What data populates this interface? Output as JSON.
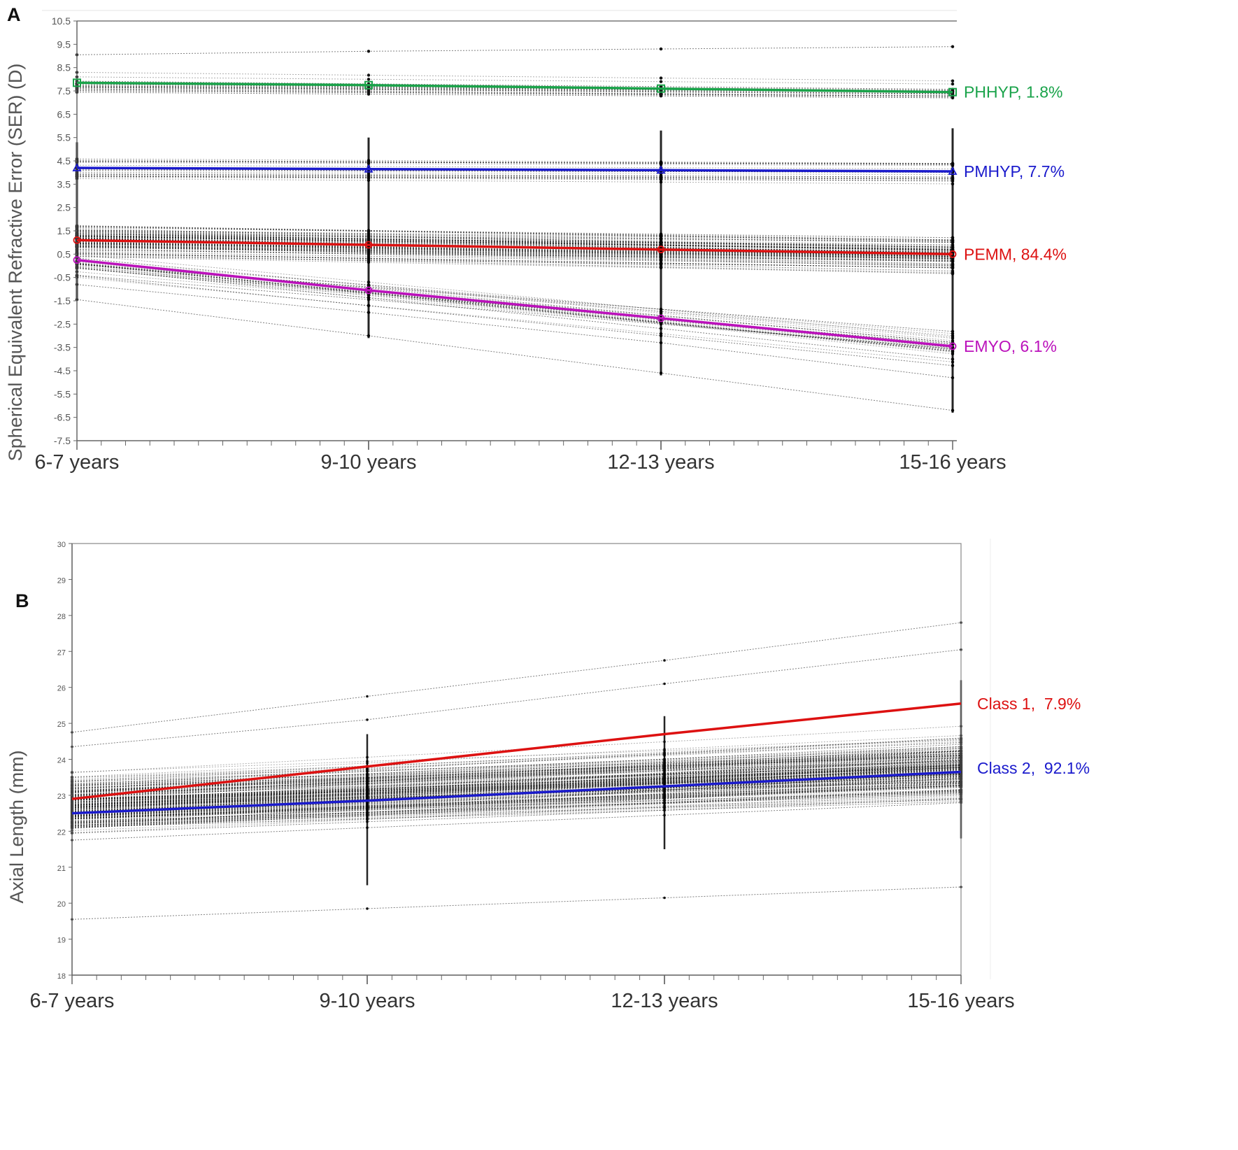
{
  "chart_data": [
    {
      "panel": "A",
      "type": "line",
      "ylabel": "Spherical Equivalent Refractive Error (SER) (D)",
      "xlabel": "",
      "categories": [
        "6-7 years",
        "9-10 years",
        "12-13 years",
        "15-16 years"
      ],
      "ylim": [
        -7.5,
        10.5
      ],
      "yticks": [
        "10.5",
        "9.5",
        "8.5",
        "7.5",
        "6.5",
        "5.5",
        "4.5",
        "3.5",
        "2.5",
        "1.5",
        "0.5",
        "-0.5",
        "-1.5",
        "-2.5",
        "-3.5",
        "-4.5",
        "-5.5",
        "-6.5",
        "-7.5"
      ],
      "series": [
        {
          "name": "PHHYP",
          "label": "PHHYP, 1.8%",
          "color": "#1aa34a",
          "marker": "square",
          "values": [
            7.85,
            7.75,
            7.6,
            7.45
          ]
        },
        {
          "name": "PMHYP",
          "label": "PMHYP, 7.7%",
          "color": "#1a1acc",
          "marker": "triangle",
          "values": [
            4.2,
            4.15,
            4.1,
            4.05
          ]
        },
        {
          "name": "PEMM",
          "label": "PEMM, 84.4%",
          "color": "#dd1111",
          "marker": "circle",
          "values": [
            1.1,
            0.9,
            0.7,
            0.5
          ]
        },
        {
          "name": "EMYO",
          "label": "EMYO, 6.1%",
          "color": "#bb11bb",
          "marker": "circle",
          "values": [
            0.25,
            -1.05,
            -2.25,
            -3.45
          ]
        }
      ]
    },
    {
      "panel": "B",
      "type": "line",
      "ylabel": "Axial Length (mm)",
      "xlabel": "",
      "categories": [
        "6-7 years",
        "9-10 years",
        "12-13 years",
        "15-16 years"
      ],
      "ylim": [
        18,
        30
      ],
      "yticks": [
        "30",
        "29",
        "28",
        "27",
        "26",
        "25",
        "24",
        "23",
        "22",
        "21",
        "20",
        "19",
        "18"
      ],
      "series": [
        {
          "name": "Class 1",
          "label": "Class 1,  7.9%",
          "color": "#dd1111",
          "values": [
            22.9,
            23.8,
            24.7,
            25.55
          ]
        },
        {
          "name": "Class 2",
          "label": "Class 2,  92.1%",
          "color": "#1a1acc",
          "values": [
            22.5,
            22.85,
            23.25,
            23.65
          ]
        }
      ]
    }
  ]
}
